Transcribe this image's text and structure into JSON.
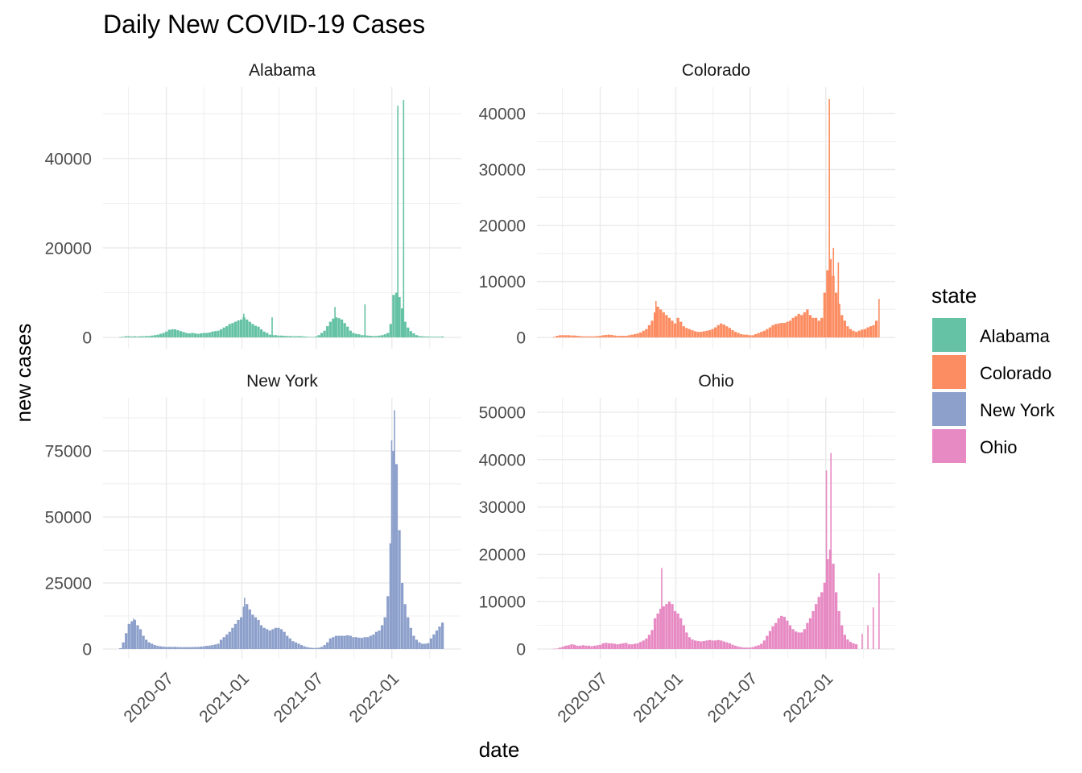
{
  "chart_data": {
    "type": "bar",
    "title": "Daily New COVID-19 Cases",
    "xlabel": "date",
    "ylabel": "new cases",
    "grid": true,
    "legend_position": "right",
    "frequency": "weekly",
    "start": "2020-03-08",
    "xlim": [
      "2020-01-29",
      "2022-06-19"
    ],
    "x_ticks": [
      "2020-07",
      "2021-01",
      "2021-07",
      "2022-01"
    ],
    "facets": [
      {
        "name": "Alabama",
        "color": "#66C2A5",
        "ylim": [
          -2520,
          56000
        ],
        "y_ticks": [
          0,
          20000,
          40000
        ],
        "values": [
          50,
          150,
          250,
          250,
          200,
          250,
          200,
          250,
          250,
          300,
          300,
          400,
          500,
          600,
          800,
          1000,
          1300,
          1700,
          1800,
          1800,
          1600,
          1400,
          1200,
          1000,
          900,
          1000,
          900,
          800,
          900,
          1000,
          1000,
          1100,
          1300,
          1400,
          1500,
          1800,
          2200,
          2500,
          3000,
          3200,
          3500,
          3800,
          4000,
          4500,
          4000,
          3500,
          3000,
          2600,
          2400,
          1800,
          1300,
          1000,
          600,
          500,
          500,
          400,
          400,
          350,
          300,
          300,
          250,
          250,
          300,
          250,
          200,
          150,
          100,
          100,
          200,
          500,
          1000,
          1500,
          2500,
          3500,
          4200,
          4500,
          4300,
          4000,
          3200,
          2400,
          1500,
          1000,
          800,
          700,
          500,
          500,
          400,
          350,
          300,
          300,
          400,
          500,
          700,
          1000,
          3000,
          9500,
          10000,
          9000,
          6500,
          3500,
          2200,
          1400,
          900,
          500,
          300,
          250,
          200,
          200,
          150,
          150,
          150,
          150,
          200
        ],
        "spikes": [
          {
            "date": "2021-01-04",
            "value": 5300
          },
          {
            "date": "2021-03-14",
            "value": 4500
          },
          {
            "date": "2021-08-14",
            "value": 6800
          },
          {
            "date": "2021-10-26",
            "value": 7400
          },
          {
            "date": "2022-01-14",
            "value": 51800
          },
          {
            "date": "2022-01-28",
            "value": 53100
          }
        ]
      },
      {
        "name": "Colorado",
        "color": "#FC8D62",
        "ylim": [
          -2000,
          44750
        ],
        "y_ticks": [
          0,
          10000,
          20000,
          30000,
          40000
        ],
        "values": [
          100,
          300,
          400,
          400,
          400,
          400,
          350,
          350,
          300,
          250,
          200,
          200,
          200,
          200,
          200,
          250,
          300,
          400,
          450,
          500,
          450,
          350,
          300,
          300,
          300,
          300,
          400,
          500,
          600,
          700,
          900,
          1200,
          1500,
          2200,
          3000,
          4500,
          5500,
          5000,
          4500,
          4000,
          3500,
          3000,
          2500,
          3500,
          2800,
          2000,
          1700,
          1500,
          1300,
          1100,
          1000,
          1000,
          1100,
          1200,
          1300,
          1500,
          1800,
          2200,
          2500,
          2300,
          2000,
          1700,
          1300,
          1000,
          800,
          600,
          500,
          500,
          400,
          400,
          600,
          800,
          1000,
          1200,
          1500,
          1800,
          2200,
          2400,
          2500,
          2600,
          2600,
          2800,
          3000,
          3500,
          3800,
          4200,
          4000,
          4500,
          5000,
          4000,
          3500,
          3500,
          3000,
          3500,
          8000,
          12000,
          14000,
          11000,
          8000,
          6000,
          4000,
          3000,
          2000,
          1500,
          1200,
          1000,
          1200,
          1400,
          1500,
          1800,
          2000,
          2200,
          3000
        ],
        "spikes": [
          {
            "date": "2020-11-12",
            "value": 6500
          },
          {
            "date": "2022-01-08",
            "value": 42600
          },
          {
            "date": "2022-01-18",
            "value": 16000
          },
          {
            "date": "2022-01-30",
            "value": 13400
          },
          {
            "date": "2022-05-09",
            "value": 6900
          }
        ]
      },
      {
        "name": "New York",
        "color": "#8DA0CB",
        "ylim": [
          -3660,
          95100
        ],
        "y_ticks": [
          0,
          25000,
          50000,
          75000
        ],
        "values": [
          300,
          2500,
          6000,
          9500,
          10500,
          11000,
          9000,
          7500,
          5000,
          3500,
          2500,
          2000,
          1500,
          1200,
          1000,
          900,
          800,
          800,
          800,
          800,
          750,
          700,
          700,
          700,
          700,
          750,
          750,
          800,
          900,
          1000,
          1200,
          1300,
          1500,
          1700,
          2000,
          3500,
          4500,
          5500,
          6500,
          8000,
          9500,
          11000,
          12000,
          16000,
          17000,
          15000,
          13000,
          12000,
          11000,
          9000,
          8000,
          7500,
          7000,
          7500,
          8000,
          8000,
          7500,
          6500,
          5000,
          4000,
          3000,
          2500,
          2000,
          1500,
          1000,
          700,
          500,
          400,
          400,
          500,
          800,
          1500,
          2500,
          4000,
          4500,
          5000,
          5000,
          5000,
          5000,
          5200,
          5000,
          4500,
          4500,
          4300,
          4200,
          4500,
          4500,
          5000,
          5500,
          6500,
          7000,
          9000,
          12000,
          20000,
          40000,
          75000,
          70000,
          45000,
          25000,
          17000,
          12000,
          8000,
          5000,
          3500,
          2500,
          2000,
          2000,
          2200,
          4000,
          5500,
          7000,
          8500,
          10000
        ],
        "spikes": [
          {
            "date": "2020-04-11",
            "value": 11500
          },
          {
            "date": "2021-01-06",
            "value": 19400
          },
          {
            "date": "2021-12-30",
            "value": 79000
          },
          {
            "date": "2022-01-06",
            "value": 90400
          }
        ]
      },
      {
        "name": "Ohio",
        "color": "#E78AC3",
        "ylim": [
          -2040,
          53060
        ],
        "y_ticks": [
          0,
          10000,
          20000,
          30000,
          40000,
          50000
        ],
        "values": [
          50,
          100,
          300,
          500,
          700,
          800,
          1000,
          900,
          700,
          700,
          800,
          700,
          700,
          600,
          700,
          800,
          900,
          1200,
          1300,
          1200,
          1200,
          1100,
          1000,
          1100,
          1200,
          1300,
          1000,
          1000,
          1100,
          1200,
          1500,
          1800,
          2200,
          3000,
          4000,
          6500,
          7500,
          8500,
          9000,
          9500,
          10000,
          9500,
          8000,
          7500,
          6500,
          5000,
          3500,
          2500,
          2000,
          1800,
          1700,
          1600,
          1700,
          1800,
          1900,
          1800,
          1800,
          1900,
          1800,
          1600,
          1400,
          1200,
          900,
          700,
          500,
          400,
          300,
          300,
          300,
          400,
          600,
          800,
          1100,
          1800,
          2800,
          3800,
          4800,
          5500,
          6500,
          7000,
          6800,
          6000,
          5000,
          4200,
          3700,
          3500,
          3500,
          4200,
          5500,
          6500,
          8000,
          9500,
          11000,
          12000,
          14000,
          19000,
          21000,
          18000,
          12000,
          8000,
          5000,
          3000,
          2000,
          1500,
          1200,
          1000,
          0,
          0,
          0,
          0,
          0,
          0,
          0
        ],
        "spikes": [
          {
            "date": "2020-11-26",
            "value": 17100
          },
          {
            "date": "2022-01-01",
            "value": 37700
          },
          {
            "date": "2022-01-12",
            "value": 41400
          },
          {
            "date": "2022-03-29",
            "value": 3200
          },
          {
            "date": "2022-04-12",
            "value": 5000
          },
          {
            "date": "2022-04-25",
            "value": 8800
          },
          {
            "date": "2022-05-09",
            "value": 16000
          }
        ]
      }
    ]
  },
  "legend": {
    "title": "state",
    "items": [
      {
        "label": "Alabama",
        "color": "#66C2A5"
      },
      {
        "label": "Colorado",
        "color": "#FC8D62"
      },
      {
        "label": "New York",
        "color": "#8DA0CB"
      },
      {
        "label": "Ohio",
        "color": "#E78AC3"
      }
    ]
  }
}
